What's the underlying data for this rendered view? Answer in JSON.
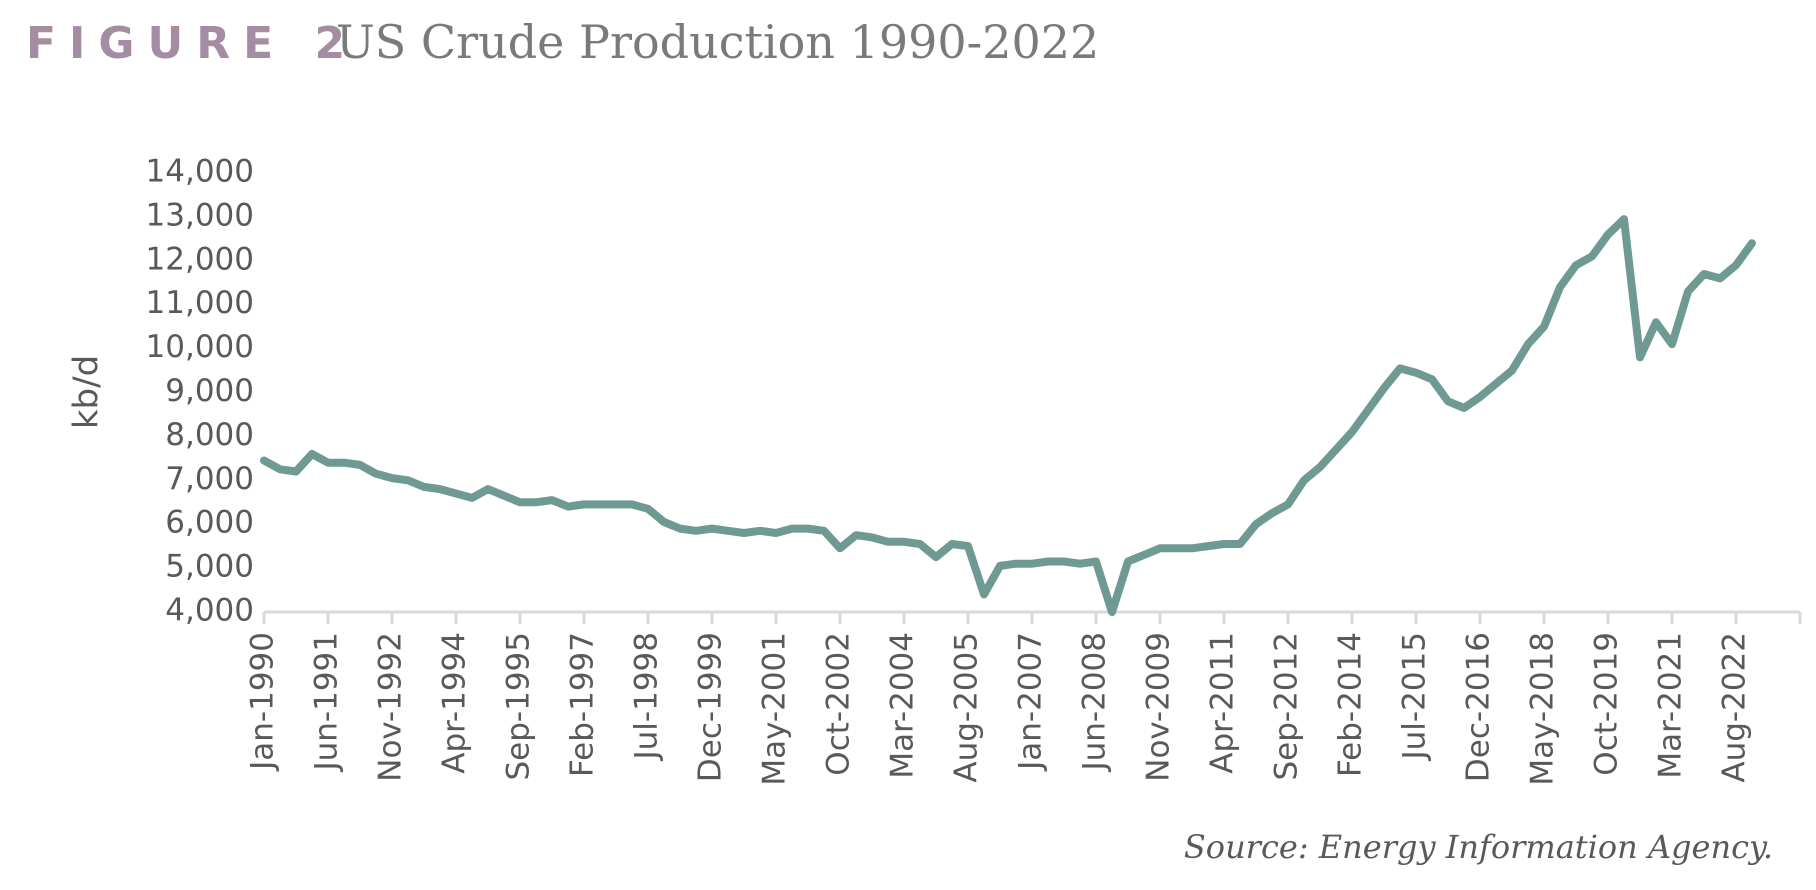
{
  "chart_data": {
    "type": "line",
    "figure_label": "FIGURE 2",
    "title": "US Crude Production 1990-2022",
    "y_label": "kb/d",
    "source": "Source: Energy Information Agency.",
    "categories": [
      "Jan-1990",
      null,
      null,
      null,
      "Jun-1991",
      null,
      null,
      null,
      "Nov-1992",
      null,
      null,
      null,
      "Apr-1994",
      null,
      null,
      null,
      "Sep-1995",
      null,
      null,
      null,
      "Feb-1997",
      null,
      null,
      null,
      "Jul-1998",
      null,
      null,
      null,
      "Dec-1999",
      null,
      null,
      null,
      "May-2001",
      null,
      null,
      null,
      "Oct-2002",
      null,
      null,
      null,
      "Mar-2004",
      null,
      null,
      null,
      "Aug-2005",
      null,
      null,
      null,
      "Jan-2007",
      null,
      null,
      null,
      "Jun-2008",
      null,
      null,
      null,
      "Nov-2009",
      null,
      null,
      null,
      "Apr-2011",
      null,
      null,
      null,
      "Sep-2012",
      null,
      null,
      null,
      "Feb-2014",
      null,
      null,
      null,
      "Jul-2015",
      null,
      null,
      null,
      "Dec-2016",
      null,
      null,
      null,
      "May-2018",
      null,
      null,
      null,
      "Oct-2019",
      null,
      null,
      null,
      "Mar-2021",
      null,
      null,
      null,
      "Aug-2022",
      null,
      null,
      null,
      null
    ],
    "series": [
      {
        "name": "US crude production",
        "color": "#6f9a94",
        "values": [
          7450,
          7250,
          7200,
          7600,
          7400,
          7400,
          7350,
          7150,
          7050,
          7000,
          6850,
          6800,
          6700,
          6600,
          6800,
          6650,
          6500,
          6500,
          6550,
          6400,
          6450,
          6450,
          6450,
          6450,
          6350,
          6050,
          5900,
          5850,
          5900,
          5850,
          5800,
          5850,
          5800,
          5900,
          5900,
          5850,
          5450,
          5750,
          5700,
          5600,
          5600,
          5550,
          5250,
          5550,
          5500,
          4400,
          5050,
          5100,
          5100,
          5150,
          5150,
          5100,
          5150,
          4000,
          5150,
          5300,
          5450,
          5450,
          5450,
          5500,
          5550,
          5550,
          6000,
          6250,
          6450,
          7000,
          7300,
          7700,
          8100,
          8600,
          9100,
          9550,
          9450,
          9300,
          8800,
          8650,
          8900,
          9200,
          9500,
          10100,
          10500,
          11400,
          11900,
          12100,
          12600,
          12950,
          9800,
          10600,
          10100,
          11300,
          11700,
          11600,
          11900,
          12400,
          null,
          null,
          null
        ]
      }
    ],
    "ylim": [
      4000,
      14000
    ],
    "yticks": [
      {
        "value": 4000,
        "label": "4,000"
      },
      {
        "value": 5000,
        "label": "5,000"
      },
      {
        "value": 6000,
        "label": "6,000"
      },
      {
        "value": 7000,
        "label": "7,000"
      },
      {
        "value": 8000,
        "label": "8,000"
      },
      {
        "value": 9000,
        "label": "9,000"
      },
      {
        "value": 10000,
        "label": "10,000"
      },
      {
        "value": 11000,
        "label": "11,000"
      },
      {
        "value": 12000,
        "label": "12,000"
      },
      {
        "value": 13000,
        "label": "13,000"
      },
      {
        "value": 14000,
        "label": "14,000"
      }
    ],
    "xtick_every": 4,
    "grid": false
  }
}
